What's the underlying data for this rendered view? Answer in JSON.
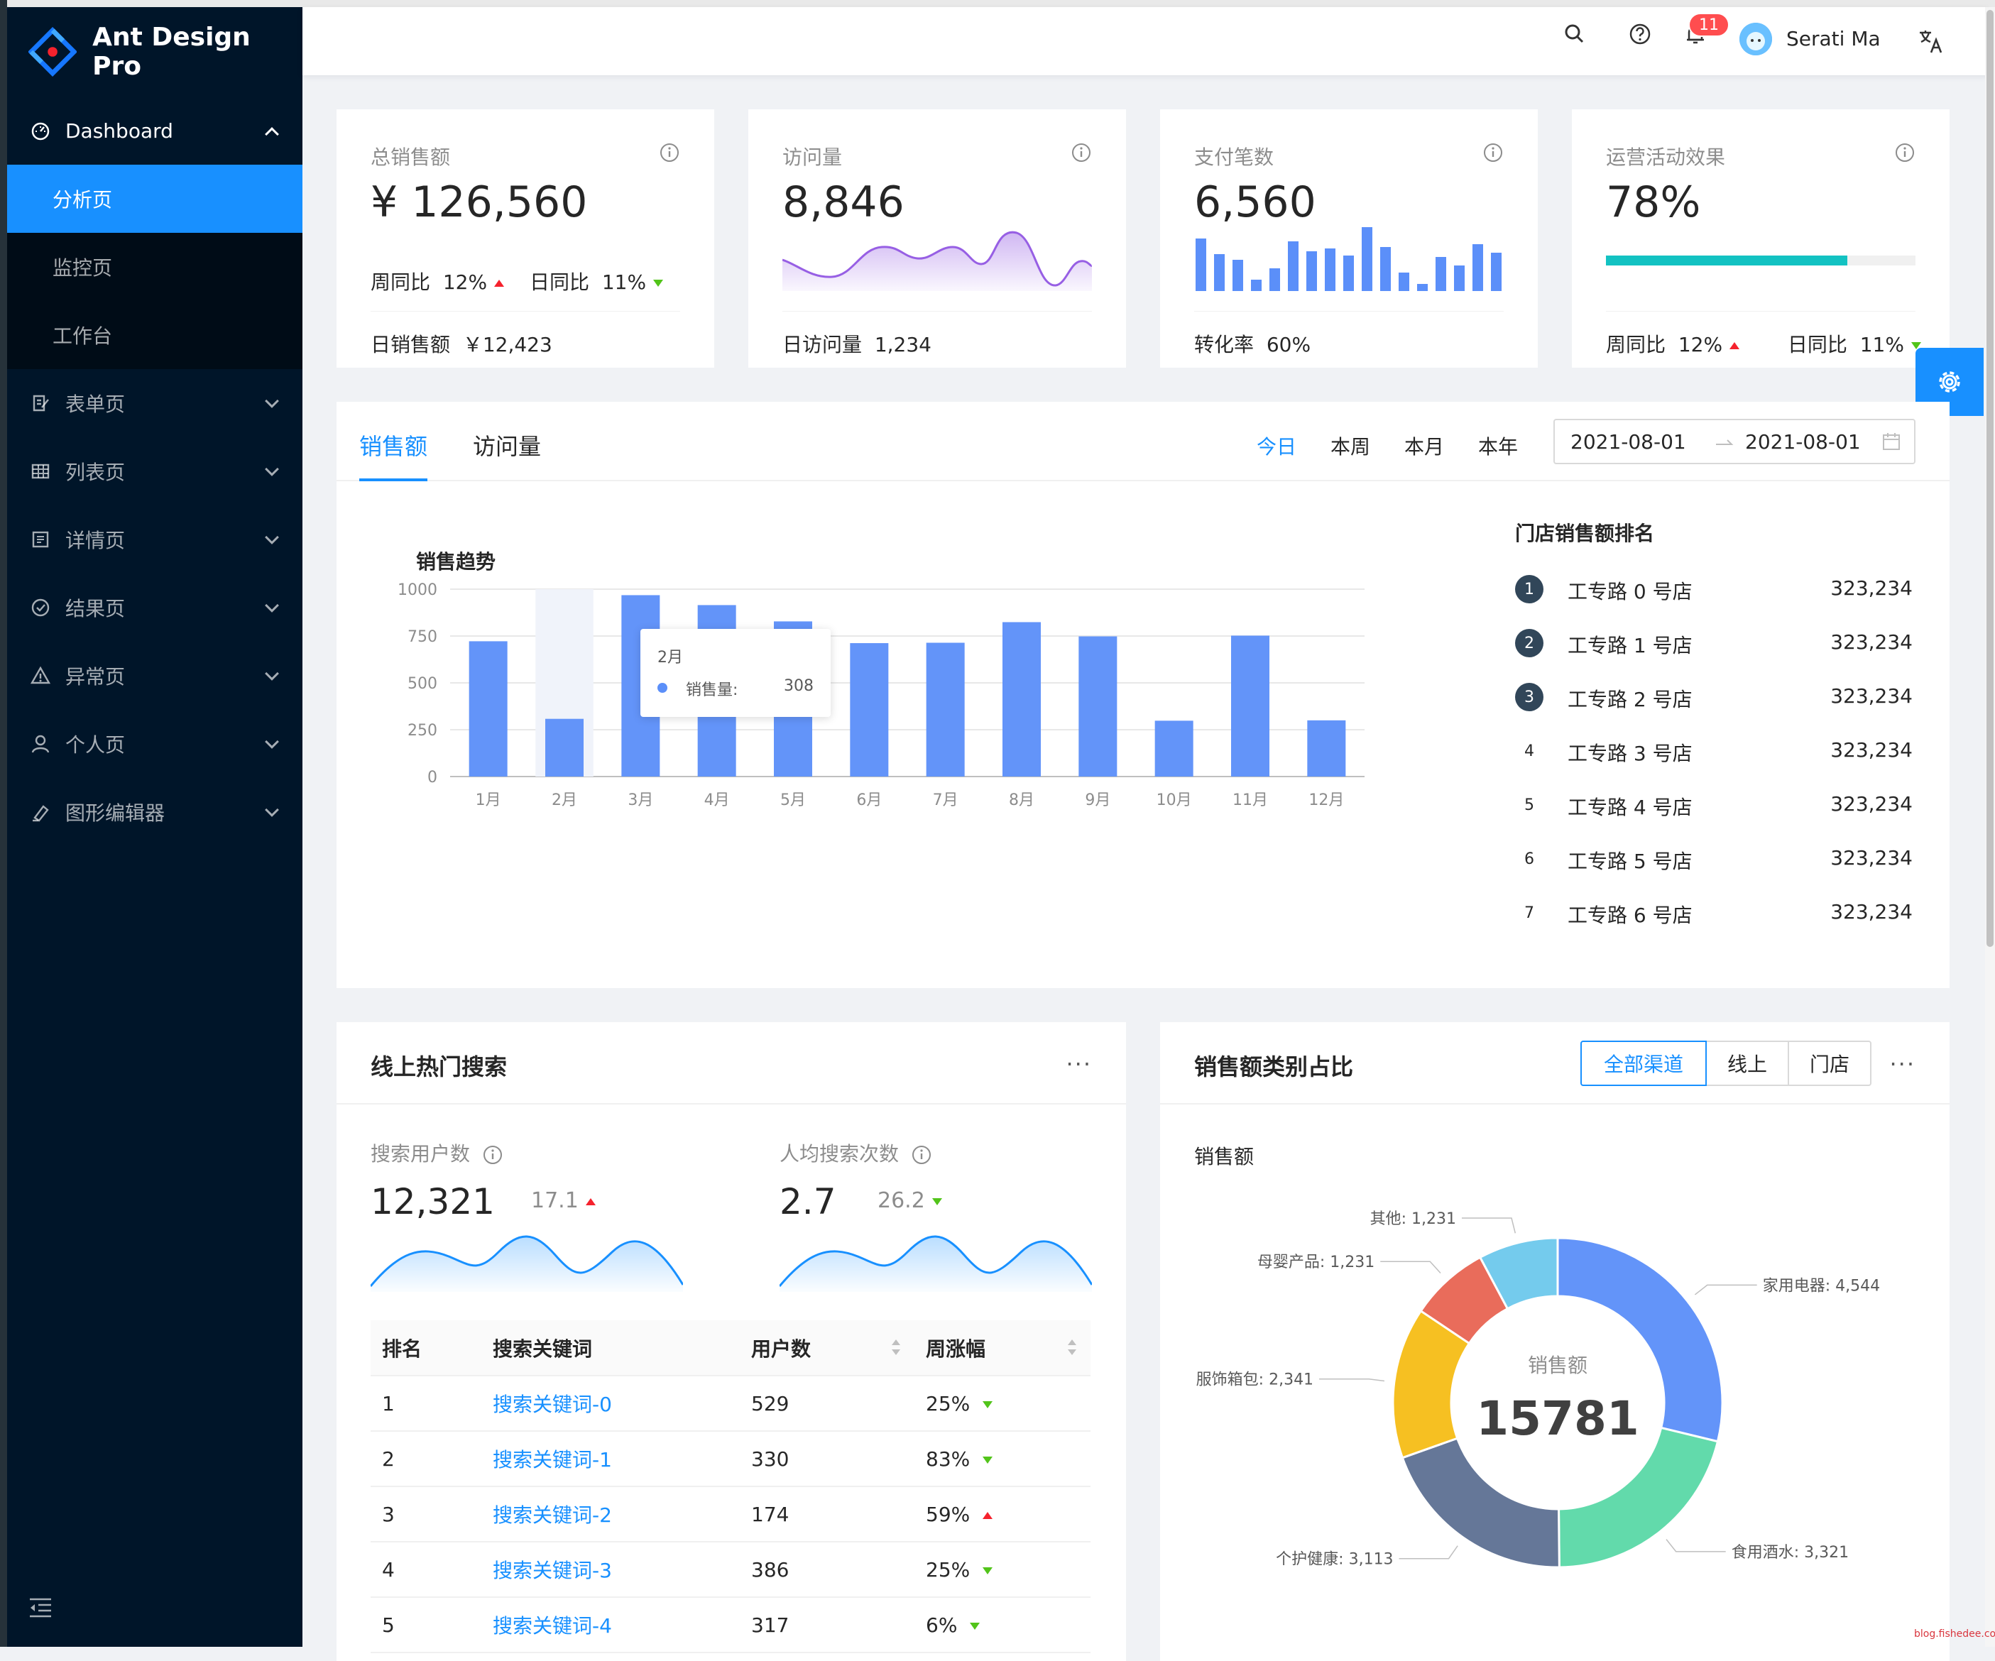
{
  "app": {
    "title": "Ant Design Pro"
  },
  "sidebar": {
    "dashboard": {
      "label": "Dashboard",
      "items": [
        {
          "label": "分析页"
        },
        {
          "label": "监控页"
        },
        {
          "label": "工作台"
        }
      ]
    },
    "groups": [
      {
        "label": "表单页",
        "icon": "form-icon"
      },
      {
        "label": "列表页",
        "icon": "table-icon"
      },
      {
        "label": "详情页",
        "icon": "profile-icon"
      },
      {
        "label": "结果页",
        "icon": "check-circle-icon"
      },
      {
        "label": "异常页",
        "icon": "warning-icon"
      },
      {
        "label": "个人页",
        "icon": "user-icon"
      },
      {
        "label": "图形编辑器",
        "icon": "highlight-icon"
      }
    ]
  },
  "header": {
    "notifications": "11",
    "user": "Serati Ma"
  },
  "kpis": [
    {
      "label": "总销售额",
      "value": "¥ 126,560",
      "wow_label": "周同比",
      "wow": "12%",
      "dod_label": "日同比",
      "dod": "11%",
      "foot_label": "日销售额",
      "foot_value": "￥12,423"
    },
    {
      "label": "访问量",
      "value": "8,846",
      "foot_label": "日访问量",
      "foot_value": "1,234"
    },
    {
      "label": "支付笔数",
      "value": "6,560",
      "foot_label": "转化率",
      "foot_value": "60%"
    },
    {
      "label": "运营活动效果",
      "value": "78%",
      "progress": 0.78,
      "wow_label": "周同比",
      "wow": "12%",
      "dod_label": "日同比",
      "dod": "11%"
    }
  ],
  "sales": {
    "tabs": [
      "销售额",
      "访问量"
    ],
    "periods": [
      "今日",
      "本周",
      "本月",
      "本年"
    ],
    "range": {
      "start": "2021-08-01",
      "end": "2021-08-01"
    },
    "ranking_title": "门店销售额排名",
    "ranking": [
      {
        "rank": "1",
        "name": "工专路 0 号店",
        "value": "323,234"
      },
      {
        "rank": "2",
        "name": "工专路 1 号店",
        "value": "323,234"
      },
      {
        "rank": "3",
        "name": "工专路 2 号店",
        "value": "323,234"
      },
      {
        "rank": "4",
        "name": "工专路 3 号店",
        "value": "323,234"
      },
      {
        "rank": "5",
        "name": "工专路 4 号店",
        "value": "323,234"
      },
      {
        "rank": "6",
        "name": "工专路 5 号店",
        "value": "323,234"
      },
      {
        "rank": "7",
        "name": "工专路 6 号店",
        "value": "323,234"
      }
    ],
    "tooltip": {
      "title": "2月",
      "label": "销售量:",
      "value": "308"
    }
  },
  "chart_data": {
    "type": "bar",
    "title": "销售趋势",
    "categories": [
      "1月",
      "2月",
      "3月",
      "4月",
      "5月",
      "6月",
      "7月",
      "8月",
      "9月",
      "10月",
      "11月",
      "12月"
    ],
    "values": [
      722,
      308,
      968,
      915,
      828,
      712,
      714,
      824,
      748,
      298,
      752,
      300
    ],
    "ylim": [
      0,
      1000
    ],
    "yticks": [
      "0",
      "250",
      "500",
      "750",
      "1000"
    ],
    "color": "#6394f9",
    "highlight": 1
  },
  "hot": {
    "title": "线上热门搜索",
    "stats": [
      {
        "label": "搜索用户数",
        "value": "12,321",
        "change": "17.1",
        "dir": "up"
      },
      {
        "label": "人均搜索次数",
        "value": "2.7",
        "change": "26.2",
        "dir": "down"
      }
    ],
    "columns": [
      "排名",
      "搜索关键词",
      "用户数",
      "周涨幅"
    ],
    "rows": [
      {
        "rank": "1",
        "kw": "搜索关键词-0",
        "users": "529",
        "pct": "25%",
        "dir": "down"
      },
      {
        "rank": "2",
        "kw": "搜索关键词-1",
        "users": "330",
        "pct": "83%",
        "dir": "down"
      },
      {
        "rank": "3",
        "kw": "搜索关键词-2",
        "users": "174",
        "pct": "59%",
        "dir": "up"
      },
      {
        "rank": "4",
        "kw": "搜索关键词-3",
        "users": "386",
        "pct": "25%",
        "dir": "down"
      },
      {
        "rank": "5",
        "kw": "搜索关键词-4",
        "users": "317",
        "pct": "6%",
        "dir": "down"
      }
    ]
  },
  "category": {
    "title": "销售额类别占比",
    "segments": [
      "全部渠道",
      "线上",
      "门店"
    ],
    "subtitle": "销售额",
    "center_label": "销售额",
    "center_value": "15781",
    "slices": [
      {
        "name": "家用电器",
        "value": 4544,
        "label": "家用电器: 4,544",
        "color": "#6394f9"
      },
      {
        "name": "食用酒水",
        "value": 3321,
        "label": "食用酒水: 3,321",
        "color": "#62daab"
      },
      {
        "name": "个护健康",
        "value": 3113,
        "label": "个护健康: 3,113",
        "color": "#657798"
      },
      {
        "name": "服饰箱包",
        "value": 2341,
        "label": "服饰箱包: 2,341",
        "color": "#f6c022"
      },
      {
        "name": "母婴产品",
        "value": 1231,
        "label": "母婴产品: 1,231",
        "color": "#e96c5b"
      },
      {
        "name": "其他",
        "value": 1231,
        "label": "其他: 1,231",
        "color": "#74cbed"
      }
    ]
  },
  "watermark": "blog.fishedee.com"
}
